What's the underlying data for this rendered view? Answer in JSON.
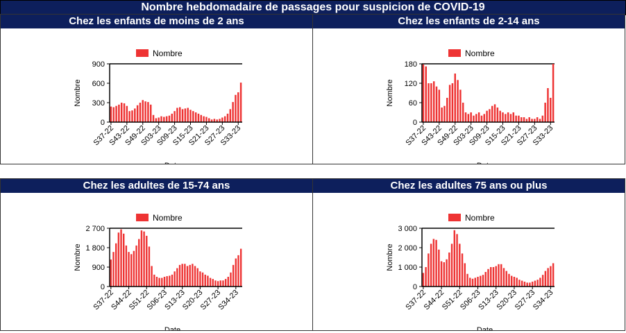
{
  "page": {
    "title": "Nombre hebdomadaire de passages pour suspicion de COVID-19"
  },
  "colors": {
    "header_bg": "#0d1f5c",
    "bar": "#ee3333"
  },
  "chart_data": [
    {
      "type": "bar",
      "title": "Chez les enfants de moins de 2 ans",
      "xlabel": "Date",
      "ylabel": "Nombre",
      "series": [
        {
          "name": "Nombre"
        }
      ],
      "legend": "top",
      "grid": false,
      "ylim": [
        0,
        900
      ],
      "yticks": [
        "0",
        "300",
        "600",
        "900"
      ],
      "xticklabels": [
        "S37-22",
        "S43-22",
        "S49-22",
        "S03-23",
        "S09-23",
        "S15-23",
        "S21-23",
        "S27-23",
        "S33-23"
      ],
      "xtick_every": 6,
      "values": [
        240,
        230,
        250,
        270,
        300,
        290,
        250,
        170,
        180,
        210,
        260,
        300,
        340,
        320,
        310,
        270,
        110,
        60,
        70,
        90,
        80,
        90,
        100,
        130,
        170,
        220,
        230,
        200,
        210,
        220,
        190,
        170,
        150,
        130,
        110,
        90,
        80,
        60,
        40,
        50,
        40,
        50,
        70,
        90,
        130,
        200,
        310,
        420,
        460,
        610
      ]
    },
    {
      "type": "bar",
      "title": "Chez les enfants de 2-14 ans",
      "xlabel": "Date",
      "ylabel": "Nombre",
      "series": [
        {
          "name": "Nombre"
        }
      ],
      "legend": "top",
      "grid": false,
      "ylim": [
        0,
        180
      ],
      "yticks": [
        "0",
        "60",
        "120",
        "180"
      ],
      "xticklabels": [
        "S37-22",
        "S43-22",
        "S49-22",
        "S03-23",
        "S09-23",
        "S15-23",
        "S21-23",
        "S27-23",
        "S33-23"
      ],
      "xtick_every": 6,
      "values": [
        178,
        172,
        120,
        120,
        126,
        110,
        100,
        45,
        50,
        75,
        115,
        120,
        150,
        130,
        100,
        60,
        30,
        25,
        30,
        20,
        25,
        30,
        20,
        25,
        35,
        40,
        50,
        55,
        45,
        35,
        30,
        25,
        30,
        25,
        30,
        20,
        20,
        15,
        15,
        10,
        15,
        10,
        10,
        15,
        10,
        20,
        60,
        105,
        75,
        180
      ]
    },
    {
      "type": "bar",
      "title": "Chez les adultes de 15-74 ans",
      "xlabel": "Date",
      "ylabel": "Nombre",
      "series": [
        {
          "name": "Nombre"
        }
      ],
      "legend": "top",
      "grid": false,
      "ylim": [
        0,
        2700
      ],
      "yticks": [
        "0",
        "900",
        "1 800",
        "2 700"
      ],
      "xticklabels": [
        "S37-22",
        "S44-22",
        "S51-22",
        "S06-23",
        "S13-23",
        "S20-23",
        "S27-23",
        "S34-23"
      ],
      "xtick_every": 7,
      "values": [
        1250,
        1600,
        2000,
        2500,
        2650,
        2450,
        1900,
        1600,
        1500,
        1650,
        1900,
        2200,
        2600,
        2550,
        2350,
        1850,
        950,
        550,
        450,
        400,
        400,
        450,
        480,
        500,
        550,
        700,
        850,
        1000,
        1050,
        1050,
        950,
        1000,
        1050,
        950,
        850,
        700,
        650,
        550,
        500,
        400,
        350,
        280,
        250,
        280,
        280,
        350,
        450,
        650,
        1000,
        1300,
        1450,
        1750
      ]
    },
    {
      "type": "bar",
      "title": "Chez les adultes 75 ans ou plus",
      "xlabel": "Date",
      "ylabel": "Nombre",
      "series": [
        {
          "name": "Nombre"
        }
      ],
      "legend": "top",
      "grid": false,
      "ylim": [
        0,
        3000
      ],
      "yticks": [
        "0",
        "1 000",
        "2 000",
        "3 000"
      ],
      "xticklabels": [
        "S37-22",
        "S44-22",
        "S51-22",
        "S06-23",
        "S13-23",
        "S20-23",
        "S27-23",
        "S34-23"
      ],
      "xtick_every": 7,
      "values": [
        700,
        1000,
        1700,
        2200,
        2450,
        2400,
        1900,
        1300,
        1250,
        1400,
        1750,
        2200,
        2900,
        2700,
        2200,
        1700,
        1200,
        650,
        450,
        400,
        450,
        500,
        550,
        600,
        750,
        900,
        1000,
        1000,
        1050,
        1150,
        1150,
        950,
        800,
        650,
        550,
        500,
        450,
        350,
        300,
        250,
        200,
        200,
        250,
        300,
        350,
        450,
        600,
        800,
        950,
        1050,
        1200
      ]
    }
  ]
}
